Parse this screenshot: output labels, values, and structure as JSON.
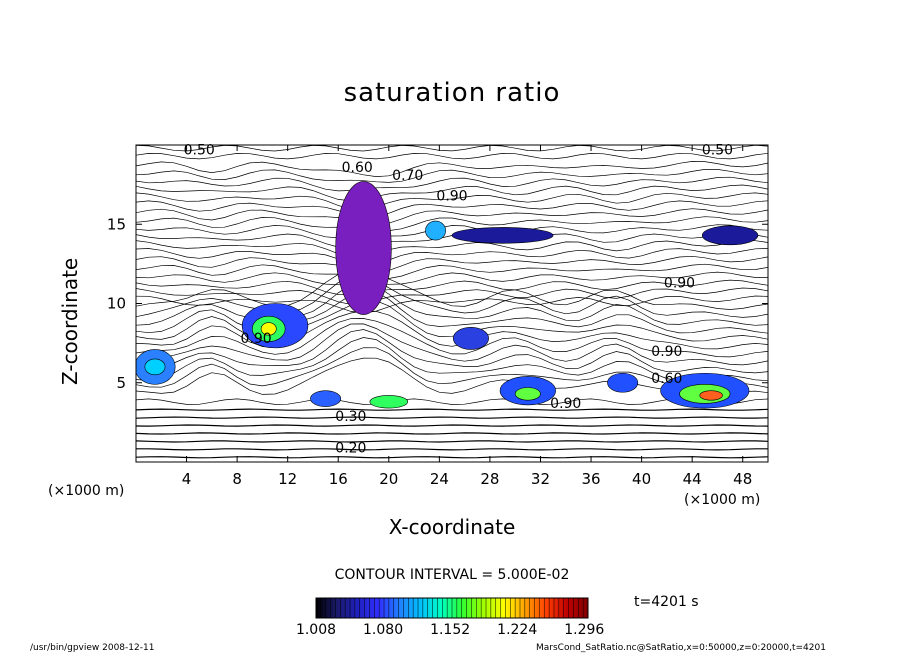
{
  "chart_data": {
    "type": "heatmap",
    "title": "saturation ratio",
    "xlabel": "X-coordinate",
    "ylabel": "Z-coordinate",
    "x_unit": "(×1000 m)",
    "x_unit_right": "(×1000 m)",
    "xlim": [
      0,
      50
    ],
    "ylim": [
      0,
      20
    ],
    "x_ticks": [
      4,
      8,
      12,
      16,
      20,
      24,
      28,
      32,
      36,
      40,
      44,
      48
    ],
    "y_ticks": [
      5,
      10,
      15
    ],
    "contour_labels": [
      {
        "text": "0.50",
        "x": 5.0,
        "y": 19.4
      },
      {
        "text": "0.50",
        "x": 46.0,
        "y": 19.4
      },
      {
        "text": "0.60",
        "x": 17.5,
        "y": 18.3
      },
      {
        "text": "0.70",
        "x": 21.5,
        "y": 17.8
      },
      {
        "text": "0.90",
        "x": 25.0,
        "y": 16.5
      },
      {
        "text": "0.90",
        "x": 43.0,
        "y": 11.0
      },
      {
        "text": "0.90",
        "x": 42.0,
        "y": 6.7
      },
      {
        "text": "0.90",
        "x": 9.5,
        "y": 7.5
      },
      {
        "text": "0.60",
        "x": 42.0,
        "y": 5.0
      },
      {
        "text": "0.90",
        "x": 34.0,
        "y": 3.4
      },
      {
        "text": "0.30",
        "x": 17.0,
        "y": 2.6
      },
      {
        "text": "0.20",
        "x": 17.0,
        "y": 0.6
      }
    ],
    "contour_interval": "CONTOUR INTERVAL = 5.000E-02",
    "colorbar_ticks": [
      "1.008",
      "1.080",
      "1.152",
      "1.224",
      "1.296"
    ],
    "colorbar_range": [
      1.008,
      1.3
    ],
    "colormap": [
      "#000000",
      "#1a1a6a",
      "#2020c0",
      "#3030ff",
      "#2080ff",
      "#00c0ff",
      "#00ffc0",
      "#30ff30",
      "#a0ff00",
      "#ffff00",
      "#ffa000",
      "#ff4000",
      "#c00000",
      "#800000"
    ],
    "time": "t=4201 s",
    "footer_left": "/usr/bin/gpview   2008-12-11",
    "footer_right": "MarsCond_SatRatio.nc@SatRatio,x=0:50000,z=0:20000,t=4201"
  }
}
